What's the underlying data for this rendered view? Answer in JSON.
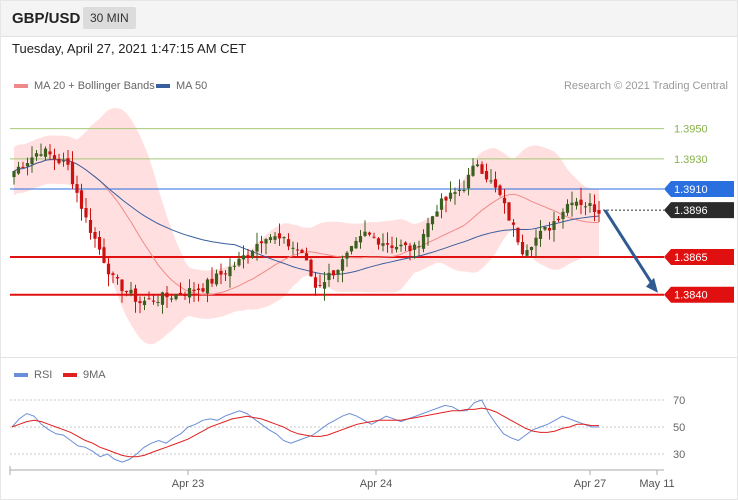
{
  "header": {
    "symbol": "GBP/USD",
    "timeframe": "30 MIN",
    "datetime": "Tuesday, April 27, 2021 1:47:15 AM CET",
    "copyright": "Research © 2021 Trading Central"
  },
  "legend": {
    "ma20_label": "MA 20 + Bollinger Bands",
    "ma50_label": "MA 50",
    "rsi_label": "RSI",
    "ma9_label": "9MA"
  },
  "colors": {
    "up": "#3a5f1e",
    "down": "#cc1111",
    "band": "#ffd9d9",
    "ma20": "#f08a8a",
    "ma50": "#3a5f9f",
    "resistance": "#2a6fe0",
    "support": "#e01010",
    "target_level": "#88b24a",
    "rsi": "#6a8fd8",
    "rsi_ma": "#e02020"
  },
  "chart_data": [
    {
      "type": "candlestick",
      "title": "GBP/USD",
      "price_range": [
        1.3808,
        1.3969
      ],
      "levels": [
        {
          "label": "1.3950",
          "value": 1.395,
          "kind": "resistance-target"
        },
        {
          "label": "1.3930",
          "value": 1.393,
          "kind": "resistance-target"
        },
        {
          "label": "1.3910",
          "value": 1.391,
          "kind": "resistance"
        },
        {
          "label": "1.3896",
          "value": 1.3896,
          "kind": "current-price"
        },
        {
          "label": "1.3865",
          "value": 1.3865,
          "kind": "support"
        },
        {
          "label": "1.3840",
          "value": 1.384,
          "kind": "support"
        }
      ],
      "forecast_arrow": {
        "from": 1.3896,
        "to": 1.384
      },
      "x_tick_labels": [
        "Apr 23",
        "Apr 24",
        "Apr 27",
        "May 11"
      ],
      "price_path": [
        {
          "i": 0,
          "price": 1.3922
        },
        {
          "i": 6,
          "price": 1.3936
        },
        {
          "i": 12,
          "price": 1.3925
        },
        {
          "i": 16,
          "price": 1.389
        },
        {
          "i": 22,
          "price": 1.385
        },
        {
          "i": 28,
          "price": 1.3835
        },
        {
          "i": 36,
          "price": 1.384
        },
        {
          "i": 42,
          "price": 1.3845
        },
        {
          "i": 50,
          "price": 1.3862
        },
        {
          "i": 56,
          "price": 1.388
        },
        {
          "i": 60,
          "price": 1.3875
        },
        {
          "i": 64,
          "price": 1.3868
        },
        {
          "i": 67,
          "price": 1.3845
        },
        {
          "i": 72,
          "price": 1.3858
        },
        {
          "i": 78,
          "price": 1.388
        },
        {
          "i": 84,
          "price": 1.3873
        },
        {
          "i": 89,
          "price": 1.387
        },
        {
          "i": 94,
          "price": 1.3898
        },
        {
          "i": 100,
          "price": 1.3912
        },
        {
          "i": 103,
          "price": 1.3928
        },
        {
          "i": 108,
          "price": 1.3905
        },
        {
          "i": 113,
          "price": 1.387
        },
        {
          "i": 119,
          "price": 1.3885
        },
        {
          "i": 124,
          "price": 1.3904
        },
        {
          "i": 130,
          "price": 1.3896
        }
      ]
    },
    {
      "type": "line",
      "title": "RSI",
      "y_ticks": [
        70,
        50,
        30
      ],
      "series": [
        {
          "name": "RSI",
          "values": [
            50,
            56,
            60,
            58,
            52,
            48,
            45,
            44,
            40,
            36,
            35,
            32,
            28,
            30,
            26,
            24,
            26,
            30,
            35,
            38,
            40,
            38,
            42,
            45,
            50,
            52,
            55,
            56,
            55,
            58,
            60,
            62,
            60,
            56,
            52,
            48,
            45,
            40,
            38,
            40,
            42,
            44,
            48,
            52,
            55,
            58,
            60,
            58,
            55,
            52,
            55,
            58,
            56,
            54,
            56,
            58,
            60,
            62,
            64,
            66,
            65,
            62,
            62,
            68,
            70,
            60,
            52,
            45,
            42,
            40,
            44,
            48,
            50,
            52,
            55,
            58,
            56,
            54,
            52,
            50,
            50
          ]
        },
        {
          "name": "9MA",
          "values": [
            50,
            52,
            54,
            55,
            54,
            52,
            50,
            48,
            46,
            43,
            40,
            38,
            35,
            33,
            31,
            29,
            28,
            28,
            29,
            31,
            33,
            35,
            37,
            39,
            41,
            44,
            47,
            50,
            52,
            54,
            56,
            57,
            58,
            57,
            56,
            54,
            52,
            50,
            47,
            45,
            44,
            43,
            43,
            44,
            46,
            48,
            50,
            52,
            53,
            54,
            55,
            55,
            55,
            55,
            56,
            57,
            58,
            59,
            60,
            61,
            62,
            62,
            63,
            63,
            64,
            63,
            61,
            58,
            55,
            52,
            49,
            47,
            46,
            46,
            47,
            49,
            50,
            52,
            52,
            51,
            51
          ]
        }
      ]
    }
  ]
}
